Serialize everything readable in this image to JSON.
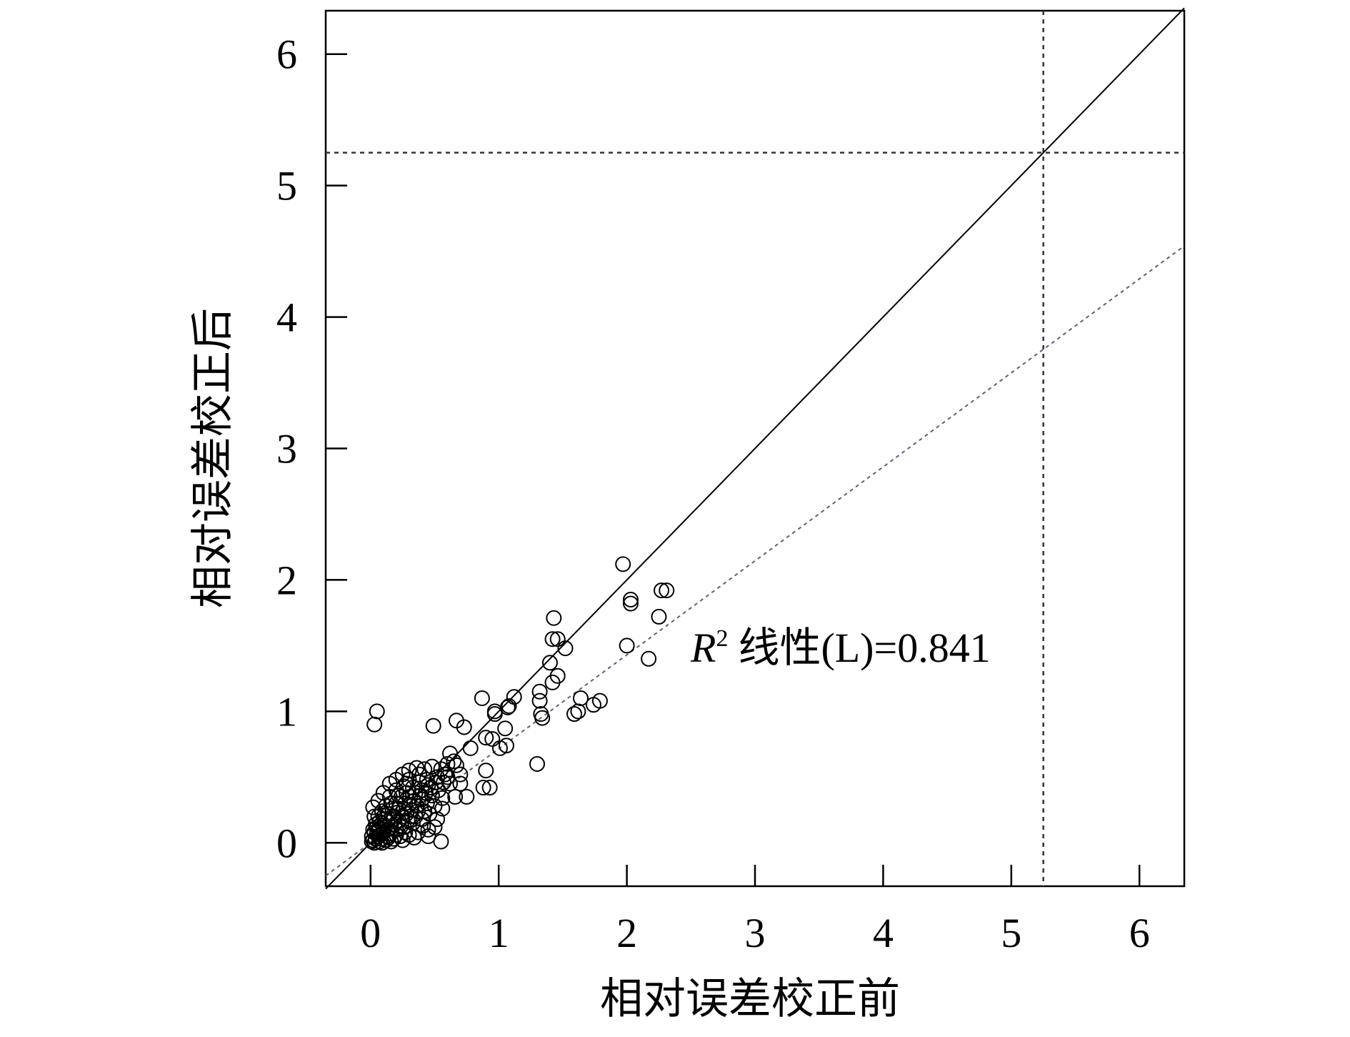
{
  "chart_data": {
    "type": "scatter",
    "xlabel": "相对误差校正前",
    "ylabel": "相对误差校正后",
    "xlim": [
      -0.35,
      6.35
    ],
    "ylim": [
      -0.33,
      6.33
    ],
    "xticks": [
      0,
      1,
      2,
      3,
      4,
      5,
      6
    ],
    "yticks": [
      0,
      1,
      2,
      3,
      4,
      5,
      6
    ],
    "annotation": {
      "r2_symbol": "R",
      "r2_power": "2",
      "r2_text": "线性(L)=0.841"
    },
    "identity_line": {
      "slope": 1,
      "intercept": 0
    },
    "fit_line": {
      "slope": 0.715,
      "intercept": 0
    },
    "reference_lines": {
      "vertical_x": 5.25,
      "horizontal_y": 5.25
    },
    "series": [
      {
        "values": [
          [
            0.05,
            1.0
          ],
          [
            0.03,
            0.9
          ],
          [
            1.97,
            2.12
          ],
          [
            2.03,
            1.85
          ],
          [
            2.03,
            1.82
          ],
          [
            2.27,
            1.92
          ],
          [
            2.31,
            1.92
          ],
          [
            2.25,
            1.72
          ],
          [
            2.0,
            1.5
          ],
          [
            2.17,
            1.4
          ],
          [
            1.43,
            1.71
          ],
          [
            1.42,
            1.55
          ],
          [
            1.46,
            1.55
          ],
          [
            1.52,
            1.48
          ],
          [
            1.4,
            1.37
          ],
          [
            1.46,
            1.27
          ],
          [
            1.42,
            1.22
          ],
          [
            1.12,
            1.11
          ],
          [
            1.08,
            1.04
          ],
          [
            1.07,
            1.03
          ],
          [
            0.97,
            1.0
          ],
          [
            0.97,
            0.98
          ],
          [
            0.87,
            1.1
          ],
          [
            1.32,
            1.15
          ],
          [
            1.32,
            1.08
          ],
          [
            1.33,
            0.98
          ],
          [
            1.34,
            0.95
          ],
          [
            1.64,
            1.1
          ],
          [
            1.74,
            1.05
          ],
          [
            1.79,
            1.08
          ],
          [
            1.59,
            0.98
          ],
          [
            1.62,
            1.0
          ],
          [
            1.05,
            0.87
          ],
          [
            0.73,
            0.88
          ],
          [
            0.67,
            0.93
          ],
          [
            0.49,
            0.89
          ],
          [
            0.95,
            0.79
          ],
          [
            0.9,
            0.8
          ],
          [
            1.01,
            0.72
          ],
          [
            1.06,
            0.74
          ],
          [
            0.78,
            0.72
          ],
          [
            0.62,
            0.68
          ],
          [
            0.67,
            0.59
          ],
          [
            1.3,
            0.6
          ],
          [
            0.9,
            0.55
          ],
          [
            0.58,
            0.52
          ],
          [
            0.88,
            0.42
          ],
          [
            0.93,
            0.42
          ],
          [
            0.7,
            0.45
          ],
          [
            0.75,
            0.35
          ],
          [
            0.66,
            0.35
          ],
          [
            0.56,
            0.26
          ],
          [
            0.55,
            0.01
          ],
          [
            0.53,
            0.4
          ],
          [
            0.48,
            0.36
          ],
          [
            0.44,
            0.3
          ],
          [
            0.4,
            0.33
          ],
          [
            0.36,
            0.28
          ],
          [
            0.32,
            0.25
          ],
          [
            0.28,
            0.22
          ],
          [
            0.25,
            0.2
          ],
          [
            0.22,
            0.17
          ],
          [
            0.19,
            0.14
          ],
          [
            0.16,
            0.12
          ],
          [
            0.13,
            0.1
          ],
          [
            0.1,
            0.08
          ],
          [
            0.08,
            0.06
          ],
          [
            0.06,
            0.05
          ],
          [
            0.04,
            0.03
          ],
          [
            0.02,
            0.02
          ],
          [
            0.01,
            0.01
          ],
          [
            0.03,
            0.0
          ],
          [
            0.07,
            0.01
          ],
          [
            0.12,
            0.02
          ],
          [
            0.18,
            0.03
          ],
          [
            0.23,
            0.05
          ],
          [
            0.3,
            0.06
          ],
          [
            0.37,
            0.08
          ],
          [
            0.45,
            0.1
          ],
          [
            0.52,
            0.18
          ],
          [
            0.05,
            0.12
          ],
          [
            0.03,
            0.2
          ],
          [
            0.02,
            0.27
          ],
          [
            0.06,
            0.32
          ],
          [
            0.1,
            0.38
          ],
          [
            0.15,
            0.45
          ],
          [
            0.2,
            0.48
          ],
          [
            0.25,
            0.52
          ],
          [
            0.3,
            0.55
          ],
          [
            0.36,
            0.57
          ],
          [
            0.42,
            0.56
          ],
          [
            0.48,
            0.58
          ],
          [
            0.55,
            0.56
          ],
          [
            0.6,
            0.5
          ],
          [
            0.62,
            0.45
          ],
          [
            0.57,
            0.46
          ],
          [
            0.45,
            0.44
          ],
          [
            0.38,
            0.46
          ],
          [
            0.33,
            0.42
          ],
          [
            0.28,
            0.38
          ],
          [
            0.24,
            0.35
          ],
          [
            0.2,
            0.3
          ],
          [
            0.17,
            0.26
          ],
          [
            0.14,
            0.22
          ],
          [
            0.11,
            0.18
          ],
          [
            0.09,
            0.15
          ],
          [
            0.07,
            0.11
          ],
          [
            0.15,
            0.07
          ],
          [
            0.2,
            0.1
          ],
          [
            0.26,
            0.12
          ],
          [
            0.33,
            0.15
          ],
          [
            0.4,
            0.18
          ],
          [
            0.46,
            0.22
          ],
          [
            0.5,
            0.28
          ],
          [
            0.42,
            0.24
          ],
          [
            0.35,
            0.2
          ],
          [
            0.29,
            0.17
          ],
          [
            0.24,
            0.13
          ],
          [
            0.18,
            0.18
          ],
          [
            0.22,
            0.26
          ],
          [
            0.27,
            0.3
          ],
          [
            0.31,
            0.35
          ],
          [
            0.35,
            0.38
          ],
          [
            0.4,
            0.4
          ],
          [
            0.44,
            0.48
          ],
          [
            0.38,
            0.52
          ],
          [
            0.3,
            0.48
          ],
          [
            0.26,
            0.43
          ],
          [
            0.2,
            0.4
          ],
          [
            0.15,
            0.35
          ],
          [
            0.12,
            0.28
          ],
          [
            0.09,
            0.24
          ],
          [
            0.06,
            0.2
          ],
          [
            0.04,
            0.14
          ],
          [
            0.03,
            0.08
          ],
          [
            0.08,
            0.03
          ],
          [
            0.14,
            0.04
          ],
          [
            0.1,
            0.12
          ],
          [
            0.13,
            0.16
          ],
          [
            0.17,
            0.2
          ],
          [
            0.21,
            0.23
          ],
          [
            0.26,
            0.26
          ],
          [
            0.3,
            0.29
          ],
          [
            0.34,
            0.32
          ],
          [
            0.39,
            0.36
          ],
          [
            0.43,
            0.38
          ],
          [
            0.47,
            0.42
          ],
          [
            0.51,
            0.46
          ],
          [
            0.6,
            0.6
          ],
          [
            0.65,
            0.62
          ],
          [
            0.7,
            0.52
          ],
          [
            0.5,
            0.12
          ],
          [
            0.45,
            0.05
          ],
          [
            0.52,
            0.5
          ],
          [
            0.28,
            0.45
          ],
          [
            0.22,
            0.36
          ],
          [
            0.16,
            0.3
          ],
          [
            0.11,
            0.21
          ],
          [
            0.07,
            0.16
          ],
          [
            0.05,
            0.08
          ],
          [
            0.02,
            0.1
          ],
          [
            0.01,
            0.05
          ],
          [
            0.09,
            0.0
          ],
          [
            0.16,
            0.01
          ],
          [
            0.25,
            0.02
          ],
          [
            0.34,
            0.04
          ],
          [
            0.41,
            0.13
          ],
          [
            0.37,
            0.24
          ],
          [
            0.31,
            0.2
          ],
          [
            0.27,
            0.08
          ],
          [
            0.2,
            0.06
          ],
          [
            0.13,
            0.05
          ],
          [
            0.56,
            0.34
          ]
        ]
      }
    ]
  }
}
